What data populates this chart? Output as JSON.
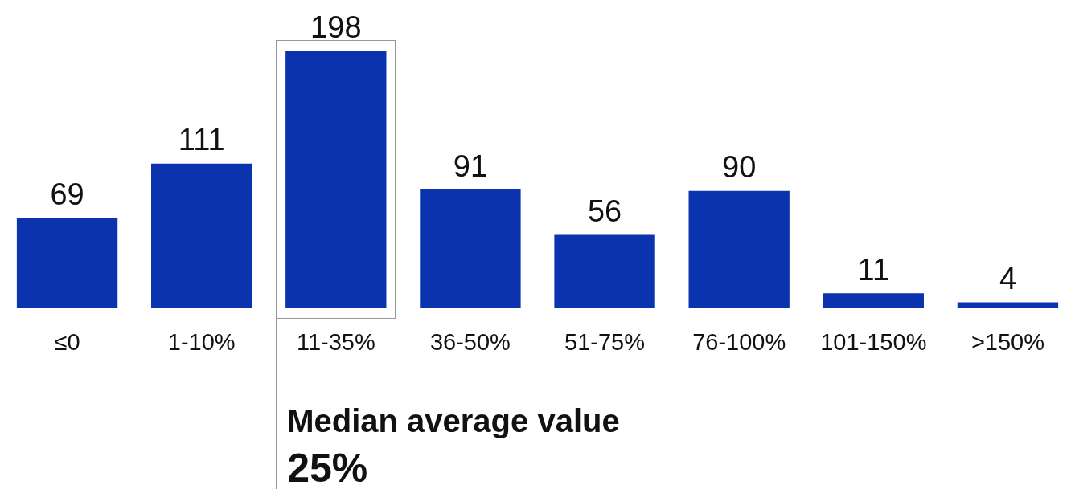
{
  "chart_data": {
    "type": "bar",
    "categories": [
      "≤0",
      "1-10%",
      "11-35%",
      "36-50%",
      "51-75%",
      "76-100%",
      "101-150%",
      ">150%"
    ],
    "values": [
      69,
      111,
      198,
      91,
      56,
      90,
      11,
      4
    ],
    "color": "#0c33ae",
    "data_labels": true,
    "grid": false,
    "legend": false,
    "tick_labels": "x",
    "annotations": [
      "Median average value",
      "25%"
    ]
  }
}
